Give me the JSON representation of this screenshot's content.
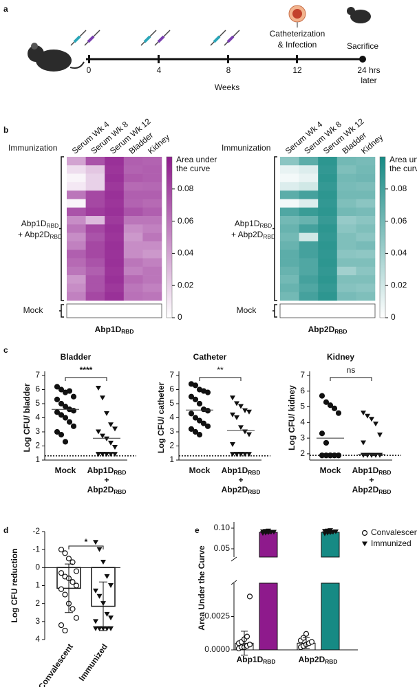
{
  "panel_labels": [
    "a",
    "b",
    "c",
    "d",
    "e"
  ],
  "timeline": {
    "ticks": [
      "0",
      "4",
      "8",
      "12",
      "24 hrs"
    ],
    "tick_note": "later",
    "axis_label": "Weeks",
    "events": [
      "Catheterization",
      "& Infection",
      "Sacrifice"
    ]
  },
  "chart_data": [
    {
      "type": "heatmap",
      "title": [
        "Abp1D",
        "RBD"
      ],
      "color": "#8e1a8c",
      "row_axis_title": "Immunization",
      "x": [
        "Serum Wk 4",
        "Serum Wk 8",
        "Serum Wk 12",
        "Bladder",
        "Kidney"
      ],
      "row_labels": {
        "immunized": [
          [
            "Abp1D",
            "RBD"
          ],
          [
            "+ Abp2D",
            "RBD"
          ]
        ],
        "mock": "Mock"
      },
      "colorbar_label": [
        "Area under",
        "the curve"
      ],
      "zlim": [
        0,
        0.1
      ],
      "zticks": [
        0,
        0.02,
        0.04,
        0.06,
        0.08
      ],
      "values": [
        [
          0.04,
          0.075,
          0.09,
          0.07,
          0.068
        ],
        [
          0.015,
          0.025,
          0.088,
          0.068,
          0.07
        ],
        [
          0.005,
          0.02,
          0.09,
          0.072,
          0.07
        ],
        [
          0.01,
          0.02,
          0.087,
          0.065,
          0.066
        ],
        [
          0.06,
          0.08,
          0.09,
          0.07,
          0.07
        ],
        [
          0.005,
          0.08,
          0.088,
          0.068,
          0.065
        ],
        [
          0.075,
          0.085,
          0.09,
          0.075,
          0.07
        ],
        [
          0.05,
          0.03,
          0.086,
          0.06,
          0.06
        ],
        [
          0.06,
          0.08,
          0.09,
          0.05,
          0.055
        ],
        [
          0.05,
          0.075,
          0.088,
          0.045,
          0.06
        ],
        [
          0.055,
          0.08,
          0.09,
          0.05,
          0.05
        ],
        [
          0.07,
          0.08,
          0.089,
          0.05,
          0.045
        ],
        [
          0.065,
          0.075,
          0.09,
          0.06,
          0.055
        ],
        [
          0.06,
          0.07,
          0.088,
          0.055,
          0.06
        ],
        [
          0.045,
          0.075,
          0.09,
          0.065,
          0.06
        ],
        [
          0.05,
          0.075,
          0.087,
          0.06,
          0.055
        ],
        [
          0.055,
          0.08,
          0.09,
          0.062,
          0.06
        ]
      ],
      "mock_values": [
        0,
        0,
        0,
        0,
        0
      ]
    },
    {
      "type": "heatmap",
      "title": [
        "Abp2D",
        "RBD"
      ],
      "color": "#168a84",
      "row_axis_title": "Immunization",
      "x": [
        "Serum Wk 4",
        "Serum Wk 8",
        "Serum Wk 12",
        "Bladder",
        "Kidney"
      ],
      "row_labels": {
        "immunized": [
          [
            "Abp1D",
            "RBD"
          ],
          [
            "+ Abp2D",
            "RBD"
          ]
        ],
        "mock": "Mock"
      },
      "colorbar_label": [
        "Area under",
        "the curve"
      ],
      "zlim": [
        0,
        0.1
      ],
      "zticks": [
        0,
        0.02,
        0.04,
        0.06,
        0.08
      ],
      "values": [
        [
          0.05,
          0.07,
          0.09,
          0.06,
          0.058
        ],
        [
          0.01,
          0.015,
          0.088,
          0.055,
          0.06
        ],
        [
          0.005,
          0.01,
          0.09,
          0.06,
          0.062
        ],
        [
          0.015,
          0.02,
          0.087,
          0.058,
          0.056
        ],
        [
          0.07,
          0.08,
          0.09,
          0.06,
          0.06
        ],
        [
          0.005,
          0.015,
          0.088,
          0.055,
          0.05
        ],
        [
          0.075,
          0.085,
          0.09,
          0.06,
          0.058
        ],
        [
          0.06,
          0.065,
          0.086,
          0.045,
          0.05
        ],
        [
          0.065,
          0.08,
          0.09,
          0.05,
          0.055
        ],
        [
          0.06,
          0.02,
          0.088,
          0.055,
          0.05
        ],
        [
          0.065,
          0.08,
          0.09,
          0.055,
          0.058
        ],
        [
          0.07,
          0.08,
          0.089,
          0.05,
          0.048
        ],
        [
          0.07,
          0.075,
          0.09,
          0.055,
          0.055
        ],
        [
          0.065,
          0.075,
          0.088,
          0.04,
          0.05
        ],
        [
          0.06,
          0.08,
          0.09,
          0.055,
          0.055
        ],
        [
          0.065,
          0.075,
          0.087,
          0.052,
          0.05
        ],
        [
          0.06,
          0.08,
          0.09,
          0.058,
          0.055
        ]
      ],
      "mock_values": [
        0,
        0,
        0,
        0,
        0
      ]
    },
    {
      "type": "strip",
      "title": "Bladder",
      "ylabel": "Log CFU/ bladder",
      "categories": [
        "Mock",
        [
          [
            "Abp1D",
            "RBD"
          ],
          [
            "+"
          ],
          [
            "Abp2D",
            "RBD"
          ]
        ]
      ],
      "markers": [
        "circle",
        "triangle"
      ],
      "points": [
        [
          6.2,
          6.0,
          5.8,
          5.9,
          5.5,
          5.3,
          5.0,
          4.8,
          4.6,
          4.5,
          4.4,
          4.2,
          4.0,
          3.7,
          3.4,
          3.0,
          2.8,
          2.3
        ],
        [
          6.1,
          5.4,
          4.3,
          3.5,
          3.2,
          3.0,
          2.7,
          2.5,
          2.2,
          1.9,
          1.4,
          1.4,
          1.4,
          1.4,
          1.4,
          1.4,
          1.4,
          1.4
        ]
      ],
      "means": [
        4.6,
        2.55
      ],
      "lod": 1.3,
      "significance": "****",
      "ylim": [
        1,
        7
      ],
      "yticks": [
        1,
        2,
        3,
        4,
        5,
        6,
        7
      ]
    },
    {
      "type": "strip",
      "title": "Catheter",
      "ylabel": "Log CFU/ catheter",
      "categories": [
        "Mock",
        [
          [
            "Abp1D",
            "RBD"
          ],
          [
            "+"
          ],
          [
            "Abp2D",
            "RBD"
          ]
        ]
      ],
      "markers": [
        "circle",
        "triangle"
      ],
      "points": [
        [
          6.4,
          6.3,
          6.0,
          5.9,
          5.8,
          5.5,
          5.3,
          5.0,
          4.6,
          4.5,
          4.3,
          4.0,
          3.8,
          3.6,
          3.4,
          3.2,
          3.0,
          2.8
        ],
        [
          5.4,
          5.0,
          4.8,
          4.5,
          4.4,
          4.2,
          4.0,
          3.3,
          3.0,
          2.8,
          2.1,
          1.4,
          1.4,
          1.4,
          1.4,
          1.4,
          1.4,
          1.4
        ]
      ],
      "means": [
        4.55,
        3.1
      ],
      "lod": 1.3,
      "significance": "**",
      "ylim": [
        1,
        7
      ],
      "yticks": [
        1,
        2,
        3,
        4,
        5,
        6,
        7
      ]
    },
    {
      "type": "strip",
      "title": "Kidney",
      "ylabel": "Log CFU/ kidney",
      "categories": [
        "Mock",
        [
          [
            "Abp1D",
            "RBD"
          ],
          [
            "+"
          ],
          [
            "Abp2D",
            "RBD"
          ]
        ]
      ],
      "markers": [
        "circle",
        "triangle"
      ],
      "points": [
        [
          5.7,
          5.3,
          5.1,
          4.9,
          4.6,
          3.3,
          2.7,
          1.9,
          1.9,
          1.9,
          1.9,
          1.9,
          1.9,
          1.9,
          1.9,
          1.9,
          1.9,
          1.9
        ],
        [
          4.6,
          4.4,
          4.2,
          3.9,
          3.2,
          2.7,
          1.9,
          1.9,
          1.9,
          1.9,
          1.9,
          1.9,
          1.9,
          1.9,
          1.9,
          1.9,
          1.9,
          1.9
        ]
      ],
      "means": [
        3.0,
        1.95
      ],
      "lod": 1.9,
      "significance": "ns",
      "ylim": [
        1.6,
        7
      ],
      "yticks": [
        2,
        3,
        4,
        5,
        6,
        7
      ]
    },
    {
      "type": "bar_points",
      "ylabel": "Log CFU reduction",
      "categories": [
        "Convalescent",
        "Immunized"
      ],
      "markers": [
        "circle-open",
        "triangle"
      ],
      "values": [
        1.15,
        2.15
      ],
      "errors": [
        1.35,
        1.35
      ],
      "points": [
        [
          -1.0,
          -0.8,
          -0.5,
          -0.3,
          0.2,
          0.3,
          0.5,
          0.6,
          0.8,
          1.0,
          1.2,
          1.5,
          2.0,
          2.3,
          2.8,
          3.2,
          3.5
        ],
        [
          -1.4,
          -1.0,
          -0.3,
          0.5,
          1.0,
          1.3,
          1.6,
          2.0,
          2.6,
          2.8,
          3.0,
          3.4,
          3.4,
          3.4,
          3.4,
          3.4,
          3.4
        ]
      ],
      "significance": "*",
      "ylim": [
        -2,
        4
      ],
      "inverted": true,
      "yticks": [
        -2,
        -1,
        0,
        1,
        2,
        3,
        4
      ]
    },
    {
      "type": "broken_bar",
      "ylabel": "Area Under the Curve",
      "categories": [
        [
          "Abp1D",
          "RBD"
        ],
        [
          "Abp2D",
          "RBD"
        ]
      ],
      "ylim": [
        0,
        0.115
      ],
      "breaks": [
        0.005,
        0.03
      ],
      "yticks": [
        {
          "value": 0,
          "label": "0.0000"
        },
        {
          "value": 0.0025,
          "label": "0.0025"
        },
        {
          "value": 0.05,
          "label": "0.05"
        },
        {
          "value": 0.1,
          "label": "0.10"
        }
      ],
      "legend": "top-right",
      "series": [
        {
          "name": "Convalescent",
          "marker": "circle-open",
          "colors": [
            "#ffffff",
            "#ffffff"
          ],
          "values": [
            0.0005,
            0.0005
          ],
          "errors": [
            0.0009,
            0.0004
          ],
          "points": [
            [
              0.0001,
              0.0002,
              0.0002,
              0.0003,
              0.0004,
              0.0005,
              0.0006,
              0.0008,
              0.001,
              0.004
            ],
            [
              0.0002,
              0.0003,
              0.0004,
              0.0005,
              0.0006,
              0.0007,
              0.0009,
              0.0012
            ]
          ]
        },
        {
          "name": "Immunized",
          "marker": "triangle",
          "colors": [
            "#8e1a8c",
            "#168a84"
          ],
          "values": [
            0.09,
            0.09
          ],
          "errors": [
            0.003,
            0.003
          ],
          "points": [
            [
              0.087,
              0.088,
              0.089,
              0.09,
              0.09,
              0.091,
              0.092,
              0.093
            ],
            [
              0.086,
              0.088,
              0.089,
              0.09,
              0.091,
              0.092,
              0.093,
              0.094
            ]
          ]
        }
      ]
    }
  ]
}
